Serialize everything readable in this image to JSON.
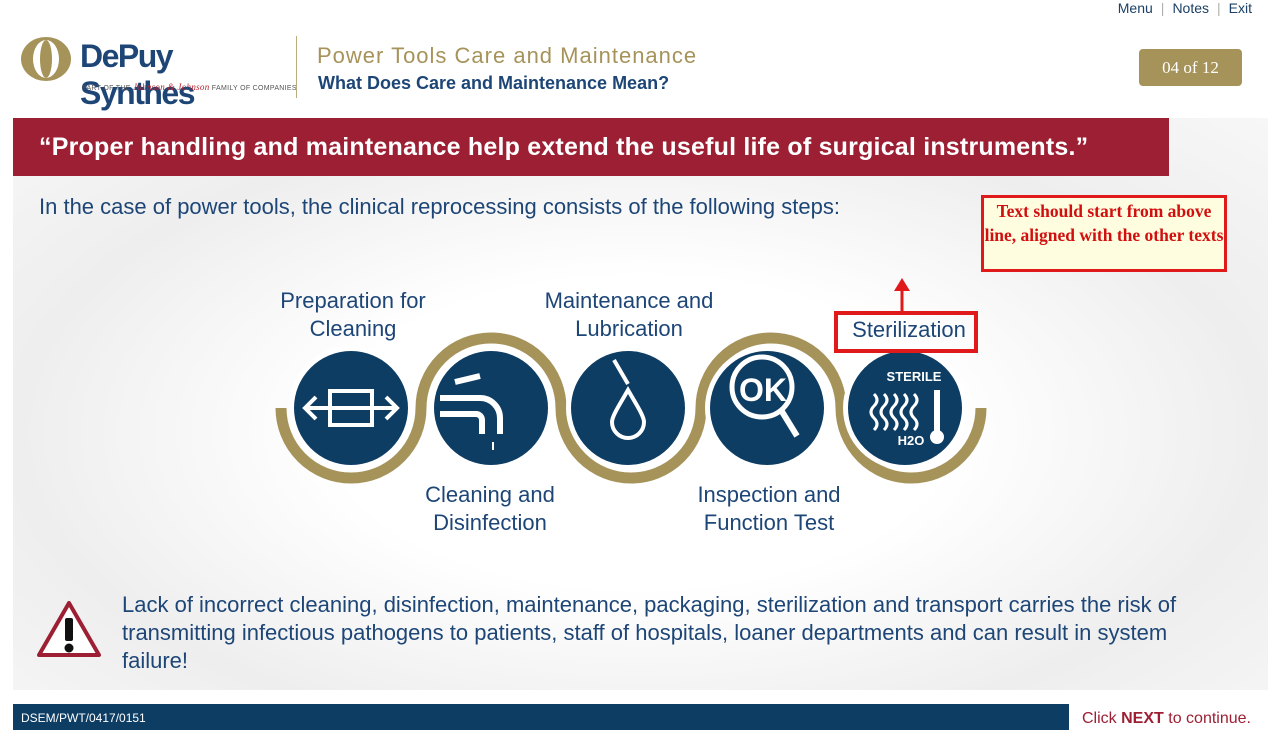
{
  "nav": {
    "menu": "Menu",
    "notes": "Notes",
    "exit": "Exit"
  },
  "brand": {
    "name": "DePuy Synthes",
    "tagline_pre": "PART OF THE",
    "tagline_jj": "Johnson & Johnson",
    "tagline_post": "FAMILY OF COMPANIES"
  },
  "header": {
    "title": "Power Tools Care and Maintenance",
    "subtitle": "What Does Care and Maintenance Mean?",
    "page": "04 of 12"
  },
  "quote": "“Proper handling and maintenance help extend the useful life of surgical instruments.”",
  "intro": "In the case of power tools, the clinical reprocessing consists of the following steps:",
  "review_note": "Text should start from above line, aligned with the other texts",
  "steps": [
    {
      "label": "Preparation for Cleaning",
      "icon": "prep-arrows-icon"
    },
    {
      "label": "Cleaning and Disinfection",
      "icon": "faucet-icon"
    },
    {
      "label": "Maintenance and Lubrication",
      "icon": "drop-icon"
    },
    {
      "label": "Inspection and Function Test",
      "icon": "magnifier-ok-icon"
    },
    {
      "label": "Sterilization",
      "icon": "sterile-icon"
    }
  ],
  "sterile_badge": {
    "top": "STERILE",
    "bottom": "H2O"
  },
  "ok_text": "OK",
  "warning": "Lack of incorrect cleaning, disinfection, maintenance, packaging, sterilization and transport carries the risk of transmitting infectious pathogens to patients, staff of hospitals, loaner departments and can result in system failure!",
  "footer": {
    "code": "DSEM/PWT/0417/0151",
    "click": "Click",
    "next": "NEXT",
    "continue": "to continue."
  },
  "colors": {
    "navy": "#0e3d64",
    "gold": "#a6935a",
    "maroon": "#9c1f33",
    "note_red": "#e01a1a"
  }
}
